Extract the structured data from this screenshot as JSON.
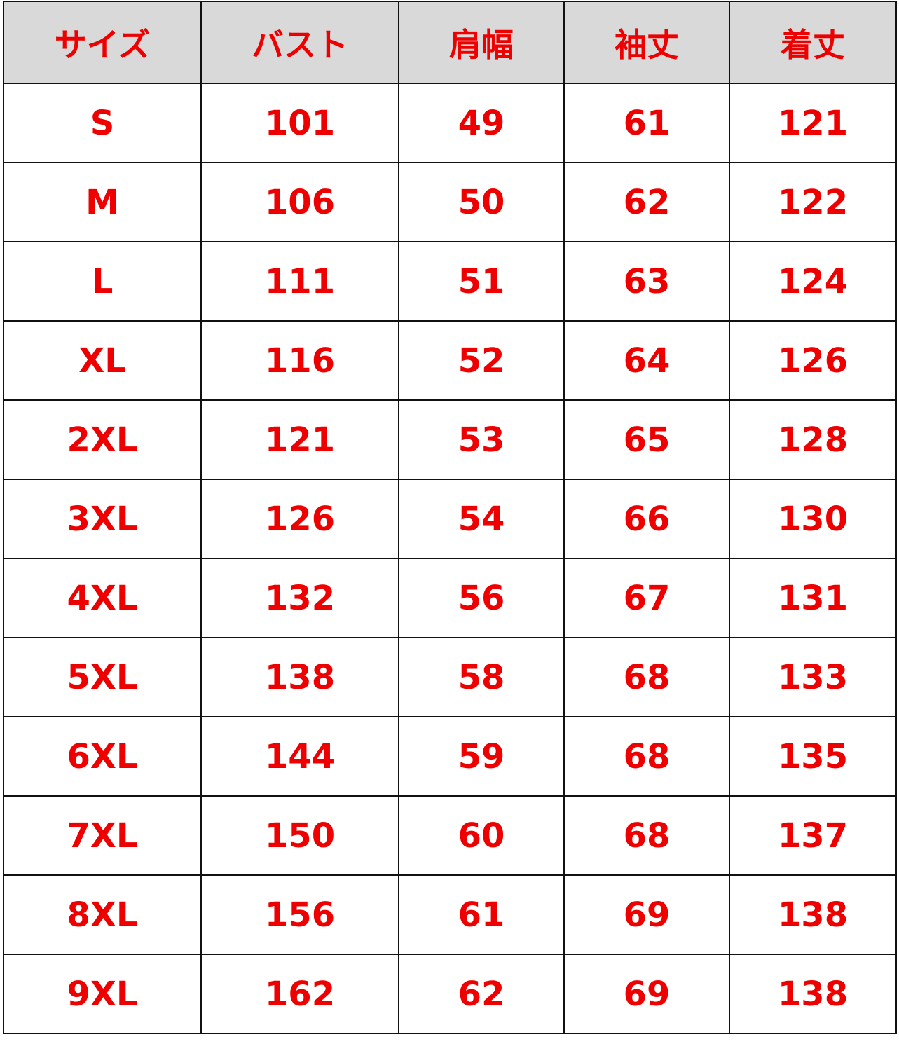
{
  "table": {
    "headers": [
      "サイズ",
      "バスト",
      "肩幅",
      "袖丈",
      "着丈"
    ],
    "rows": [
      [
        "S",
        "101",
        "49",
        "61",
        "121"
      ],
      [
        "M",
        "106",
        "50",
        "62",
        "122"
      ],
      [
        "L",
        "111",
        "51",
        "63",
        "124"
      ],
      [
        "XL",
        "116",
        "52",
        "64",
        "126"
      ],
      [
        "2XL",
        "121",
        "53",
        "65",
        "128"
      ],
      [
        "3XL",
        "126",
        "54",
        "66",
        "130"
      ],
      [
        "4XL",
        "132",
        "56",
        "67",
        "131"
      ],
      [
        "5XL",
        "138",
        "58",
        "68",
        "133"
      ],
      [
        "6XL",
        "144",
        "59",
        "68",
        "135"
      ],
      [
        "7XL",
        "150",
        "60",
        "68",
        "137"
      ],
      [
        "8XL",
        "156",
        "61",
        "69",
        "138"
      ],
      [
        "9XL",
        "162",
        "62",
        "69",
        "138"
      ]
    ]
  },
  "colors": {
    "text": "#ee0000",
    "header_bg": "#d9d9d9",
    "border": "#111111"
  }
}
